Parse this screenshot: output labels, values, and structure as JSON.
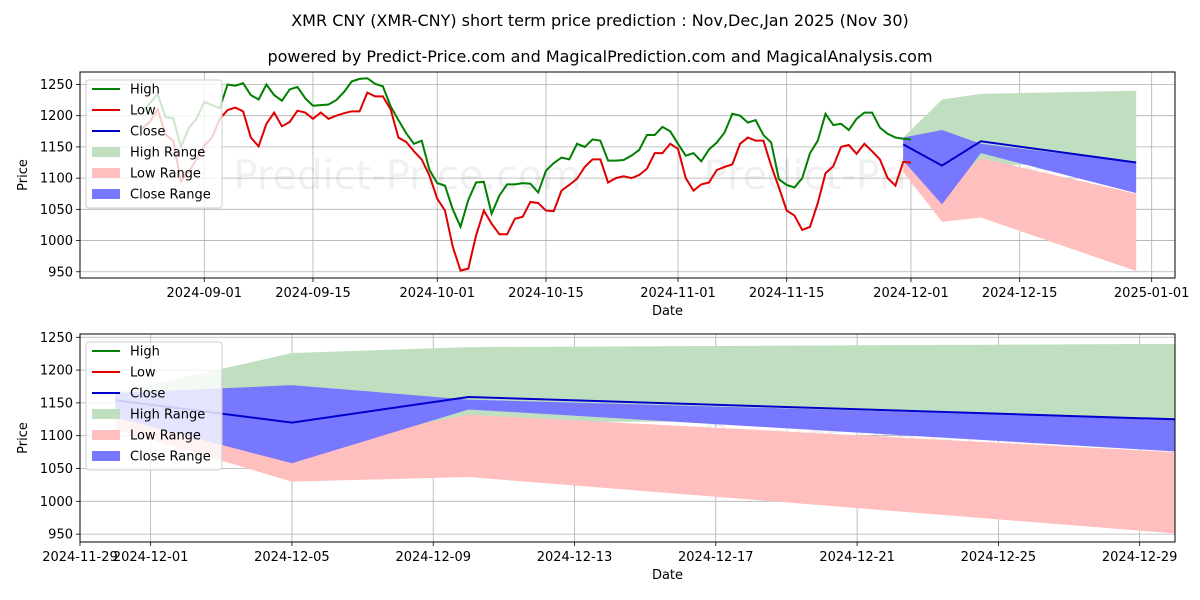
{
  "title": "XMR CNY (XMR-CNY) short term price prediction : Nov,Dec,Jan 2025 (Nov 30)",
  "subtitle": "powered by Predict-Price.com and MagicalPrediction.com and MagicalAnalysis.com",
  "watermark": "Predict-Price.com",
  "colors": {
    "high": "#008000",
    "low": "#e00000",
    "close": "#0000cc",
    "high_range": "#c0dfc0",
    "low_range": "#ffbfbf",
    "close_range": "#7878ff"
  },
  "chart_data": [
    {
      "type": "line",
      "panel": "top",
      "xlabel": "Date",
      "ylabel": "Price",
      "xlim": [
        "2024-08-16",
        "2025-01-04"
      ],
      "ylim": [
        940,
        1270
      ],
      "yticks": [
        950,
        1000,
        1050,
        1100,
        1150,
        1200,
        1250
      ],
      "xticks": [
        {
          "date": "2024-09-01",
          "label": "2024-09-01"
        },
        {
          "date": "2024-09-15",
          "label": "2024-09-15"
        },
        {
          "date": "2024-10-01",
          "label": "2024-10-01"
        },
        {
          "date": "2024-10-15",
          "label": "2024-10-15"
        },
        {
          "date": "2024-11-01",
          "label": "2024-11-01"
        },
        {
          "date": "2024-11-15",
          "label": "2024-11-15"
        },
        {
          "date": "2024-12-01",
          "label": "2024-12-01"
        },
        {
          "date": "2024-12-15",
          "label": "2024-12-15"
        },
        {
          "date": "2025-01-01",
          "label": "2025-01-01"
        }
      ],
      "legend": [
        "High",
        "Low",
        "Close",
        "High Range",
        "Low Range",
        "Close Range"
      ],
      "legend_position": "top-left",
      "series": [
        {
          "name": "High",
          "start": "2024-08-24",
          "values": [
            1205,
            1220,
            1235,
            1198,
            1196,
            1150,
            1180,
            1195,
            1222,
            1217,
            1212,
            1250,
            1248,
            1252,
            1233,
            1226,
            1250,
            1233,
            1224,
            1242,
            1246,
            1228,
            1216,
            1217,
            1218,
            1225,
            1238,
            1255,
            1259,
            1260,
            1251,
            1247,
            1215,
            1193,
            1172,
            1155,
            1160,
            1113,
            1092,
            1088,
            1050,
            1022,
            1065,
            1093,
            1094,
            1043,
            1072,
            1090,
            1090,
            1092,
            1091,
            1077,
            1112,
            1124,
            1133,
            1130,
            1155,
            1150,
            1162,
            1160,
            1128,
            1128,
            1129,
            1136,
            1145,
            1169,
            1169,
            1182,
            1175,
            1155,
            1136,
            1140,
            1127,
            1146,
            1157,
            1173,
            1203,
            1200,
            1189,
            1193,
            1169,
            1157,
            1098,
            1089,
            1085,
            1100,
            1140,
            1160,
            1203,
            1185,
            1187,
            1177,
            1195,
            1205,
            1205,
            1181,
            1171,
            1165,
            1163,
            1162
          ]
        },
        {
          "name": "Low",
          "start": "2024-08-24",
          "values": [
            1180,
            1190,
            1210,
            1170,
            1160,
            1095,
            1110,
            1130,
            1152,
            1165,
            1195,
            1209,
            1213,
            1207,
            1165,
            1151,
            1187,
            1205,
            1183,
            1190,
            1208,
            1205,
            1195,
            1205,
            1195,
            1200,
            1204,
            1207,
            1207,
            1237,
            1231,
            1231,
            1210,
            1165,
            1158,
            1143,
            1130,
            1104,
            1067,
            1048,
            990,
            952,
            955,
            1008,
            1048,
            1027,
            1010,
            1010,
            1035,
            1038,
            1062,
            1060,
            1048,
            1047,
            1080,
            1089,
            1099,
            1118,
            1130,
            1130,
            1093,
            1100,
            1103,
            1100,
            1105,
            1115,
            1140,
            1140,
            1155,
            1147,
            1100,
            1080,
            1090,
            1093,
            1113,
            1118,
            1122,
            1155,
            1165,
            1160,
            1160,
            1120,
            1085,
            1048,
            1040,
            1017,
            1022,
            1060,
            1108,
            1119,
            1150,
            1153,
            1139,
            1155,
            1143,
            1130,
            1100,
            1088,
            1126,
            1125
          ]
        }
      ],
      "forecast": {
        "dates": [
          "2024-11-30",
          "2024-12-05",
          "2024-12-10",
          "2024-12-30"
        ],
        "close": [
          1154,
          1120,
          1159,
          1125
        ],
        "high_range": {
          "upper": [
            1165,
            1226,
            1235,
            1240
          ],
          "lower": [
            1125,
            1050,
            1120,
            1125
          ]
        },
        "low_range": {
          "upper": [
            1145,
            1080,
            1132,
            1075
          ],
          "lower": [
            1110,
            1030,
            1037,
            951
          ]
        },
        "close_range": {
          "upper": [
            1165,
            1177,
            1155,
            1125
          ],
          "lower": [
            1128,
            1058,
            1140,
            1076
          ]
        }
      }
    },
    {
      "type": "line",
      "panel": "bottom",
      "xlabel": "Date",
      "ylabel": "Price",
      "xlim": [
        "2024-11-29",
        "2024-12-30"
      ],
      "ylim": [
        938,
        1255
      ],
      "yticks": [
        950,
        1000,
        1050,
        1100,
        1150,
        1200,
        1250
      ],
      "xticks": [
        {
          "date": "2024-11-29",
          "label": "2024-11-29"
        },
        {
          "date": "2024-12-01",
          "label": "2024-12-01"
        },
        {
          "date": "2024-12-05",
          "label": "2024-12-05"
        },
        {
          "date": "2024-12-09",
          "label": "2024-12-09"
        },
        {
          "date": "2024-12-13",
          "label": "2024-12-13"
        },
        {
          "date": "2024-12-17",
          "label": "2024-12-17"
        },
        {
          "date": "2024-12-21",
          "label": "2024-12-21"
        },
        {
          "date": "2024-12-25",
          "label": "2024-12-25"
        },
        {
          "date": "2024-12-29",
          "label": "2024-12-29"
        }
      ],
      "legend": [
        "High",
        "Low",
        "Close",
        "High Range",
        "Low Range",
        "Close Range"
      ],
      "legend_position": "top-left",
      "forecast": {
        "dates": [
          "2024-11-30",
          "2024-12-05",
          "2024-12-10",
          "2024-12-30"
        ],
        "close": [
          1154,
          1120,
          1159,
          1125
        ],
        "high_range": {
          "upper": [
            1165,
            1226,
            1235,
            1240
          ],
          "lower": [
            1125,
            1050,
            1120,
            1125
          ]
        },
        "low_range": {
          "upper": [
            1145,
            1080,
            1132,
            1075
          ],
          "lower": [
            1110,
            1030,
            1037,
            951
          ]
        },
        "close_range": {
          "upper": [
            1165,
            1177,
            1155,
            1125
          ],
          "lower": [
            1128,
            1058,
            1140,
            1076
          ]
        }
      }
    }
  ]
}
